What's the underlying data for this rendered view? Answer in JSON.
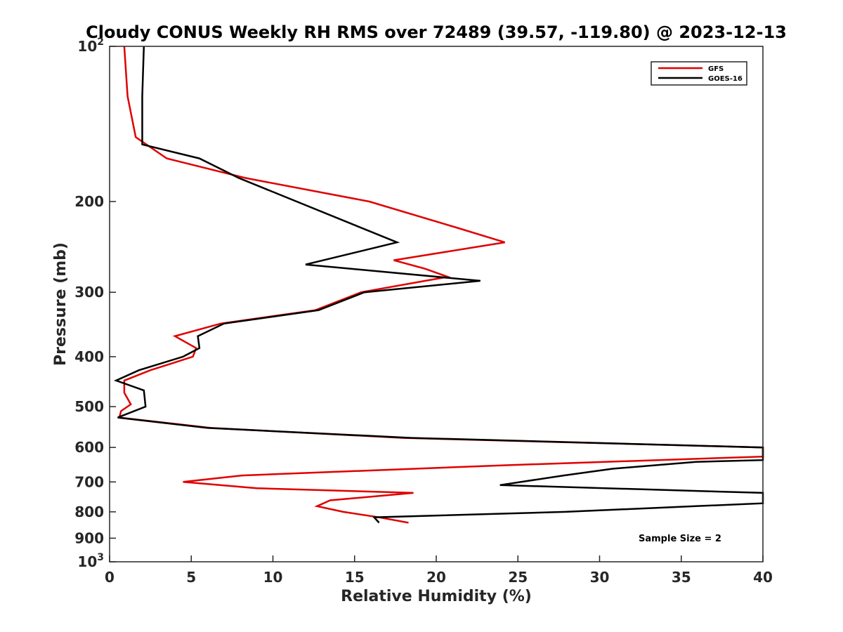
{
  "chart_data": {
    "type": "line",
    "title": "Cloudy CONUS Weekly RH RMS over 72489 (39.57, -119.80) @ 2023-12-13",
    "xlabel": "Relative Humidity (%)",
    "ylabel": "Pressure (mb)",
    "xlim": [
      0,
      40
    ],
    "ylim": [
      100,
      1000
    ],
    "y_scale": "log",
    "y_reversed": true,
    "x_ticks": [
      "0",
      "5",
      "10",
      "15",
      "20",
      "25",
      "30",
      "35",
      "40"
    ],
    "y_ticks": [
      {
        "value": 100,
        "base": "10",
        "exp": "2"
      },
      {
        "value": 200,
        "label": "200"
      },
      {
        "value": 300,
        "label": "300"
      },
      {
        "value": 400,
        "label": "400"
      },
      {
        "value": 500,
        "label": "500"
      },
      {
        "value": 600,
        "label": "600"
      },
      {
        "value": 700,
        "label": "700"
      },
      {
        "value": 800,
        "label": "800"
      },
      {
        "value": 900,
        "label": "900"
      },
      {
        "value": 1000,
        "base": "10",
        "exp": "3"
      }
    ],
    "grid": false,
    "legend_position": "top-right",
    "annotation": "Sample Size = 2",
    "series": [
      {
        "name": "GFS",
        "color": "#e00000",
        "points": [
          [
            0.9,
            100
          ],
          [
            1.1,
            125
          ],
          [
            1.6,
            150
          ],
          [
            3.5,
            165
          ],
          [
            8.3,
            180
          ],
          [
            15.9,
            200
          ],
          [
            21.3,
            225
          ],
          [
            24.2,
            240
          ],
          [
            17.4,
            260
          ],
          [
            19.3,
            270
          ],
          [
            20.7,
            280
          ],
          [
            15.4,
            300
          ],
          [
            12.6,
            325
          ],
          [
            6.8,
            345
          ],
          [
            4.0,
            365
          ],
          [
            5.3,
            385
          ],
          [
            5.1,
            400
          ],
          [
            2.5,
            425
          ],
          [
            0.9,
            445
          ],
          [
            0.9,
            470
          ],
          [
            1.3,
            495
          ],
          [
            0.7,
            510
          ],
          [
            0.6,
            525
          ],
          [
            6.2,
            550
          ],
          [
            18.0,
            575
          ],
          [
            40.0,
            600
          ],
          [
            40.0,
            625
          ],
          [
            24.0,
            650
          ],
          [
            8.1,
            680
          ],
          [
            4.5,
            700
          ],
          [
            9.0,
            720
          ],
          [
            18.6,
            735
          ],
          [
            13.5,
            760
          ],
          [
            12.7,
            780
          ],
          [
            14.3,
            800
          ],
          [
            16.5,
            820
          ],
          [
            18.3,
            840
          ]
        ]
      },
      {
        "name": "GOES-16",
        "color": "#000000",
        "points": [
          [
            2.1,
            100
          ],
          [
            2.0,
            125
          ],
          [
            2.0,
            150
          ],
          [
            2.0,
            155
          ],
          [
            5.5,
            165
          ],
          [
            7.9,
            180
          ],
          [
            17.6,
            240
          ],
          [
            12.0,
            265
          ],
          [
            22.7,
            285
          ],
          [
            15.6,
            300
          ],
          [
            12.8,
            325
          ],
          [
            7.0,
            345
          ],
          [
            5.4,
            365
          ],
          [
            5.5,
            385
          ],
          [
            4.5,
            400
          ],
          [
            1.8,
            425
          ],
          [
            0.4,
            445
          ],
          [
            2.1,
            465
          ],
          [
            2.2,
            500
          ],
          [
            0.5,
            525
          ],
          [
            6.0,
            550
          ],
          [
            18.5,
            575
          ],
          [
            40.0,
            600
          ],
          [
            40.0,
            635
          ],
          [
            35.9,
            640
          ],
          [
            30.8,
            660
          ],
          [
            27.8,
            680
          ],
          [
            23.9,
            710
          ],
          [
            40.0,
            735
          ],
          [
            40.0,
            770
          ],
          [
            35.9,
            780
          ],
          [
            27.9,
            800
          ],
          [
            16.2,
            820
          ],
          [
            16.5,
            840
          ]
        ]
      }
    ]
  }
}
